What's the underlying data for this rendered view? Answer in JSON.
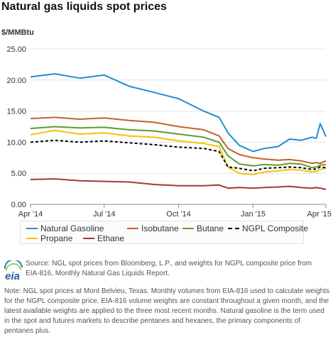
{
  "title": "Natural gas liquids spot prices",
  "unit_label": "$/MMBtu",
  "legend": [
    {
      "label": "Natural Gasoline",
      "color": "#1f8fd0",
      "style": "solid"
    },
    {
      "label": "Isobutane",
      "color": "#c3622b",
      "style": "solid"
    },
    {
      "label": "Butane",
      "color": "#5e9c2e",
      "style": "solid"
    },
    {
      "label": "NGPL Composite",
      "color": "#000000",
      "style": "dashed"
    },
    {
      "label": "Propane",
      "color": "#f2c500",
      "style": "solid"
    },
    {
      "label": "Ethane",
      "color": "#9e3a3a",
      "style": "solid"
    }
  ],
  "source": "Source: NGL spot prices from Bloomberg, L.P., and weights for NGPL composite price from EIA-816, Monthly Natural Gas Liquids Report.",
  "note": "Note: NGL spot prices at Mont Belvieu, Texas. Monthly volumes from EIA-816 used to calculate weights for the NGPL composite price. EIA-816 volume weights are constant throughout a given month, and the latest available weights are applied to the three most recent months. Natural gasoline is the term used in the spot and futures markets to describe pentanes and hexanes, the primary components of pentanes plus.",
  "logo_text": "eia",
  "chart_data": {
    "type": "line",
    "title": "Natural gas liquids spot prices",
    "ylabel": "$/MMBtu",
    "xlabel": "",
    "ylim": [
      0,
      25
    ],
    "yticks": [
      "0.00",
      "5.00",
      "10.00",
      "15.00",
      "20.00",
      "25.00"
    ],
    "xtick_labels": [
      "Apr '14",
      "Jul '14",
      "Oct '14",
      "Jan '15",
      "Apr '15"
    ],
    "xtick_dates": [
      "2014-04-01",
      "2014-07-01",
      "2014-10-01",
      "2015-01-01",
      "2015-04-01"
    ],
    "x_range": [
      "2014-04-01",
      "2015-04-01"
    ],
    "grid": true,
    "legend_position": "bottom",
    "x": [
      "2014-04-01",
      "2014-05-01",
      "2014-06-01",
      "2014-07-01",
      "2014-08-01",
      "2014-09-01",
      "2014-10-01",
      "2014-11-01",
      "2014-11-20",
      "2014-12-01",
      "2014-12-15",
      "2015-01-01",
      "2015-01-15",
      "2015-02-01",
      "2015-02-15",
      "2015-03-01",
      "2015-03-15",
      "2015-03-20",
      "2015-03-25",
      "2015-04-01"
    ],
    "series": [
      {
        "name": "Natural Gasoline",
        "color": "#1f8fd0",
        "values": [
          20.5,
          21.0,
          20.3,
          20.8,
          19.0,
          18.0,
          17.0,
          15.0,
          14.0,
          11.5,
          9.5,
          8.5,
          9.0,
          9.3,
          10.5,
          10.3,
          10.8,
          10.6,
          13.0,
          10.9
        ]
      },
      {
        "name": "Isobutane",
        "color": "#c3622b",
        "values": [
          13.8,
          14.0,
          13.7,
          13.9,
          13.5,
          13.2,
          12.5,
          12.0,
          11.0,
          9.0,
          8.0,
          7.5,
          7.3,
          7.1,
          7.2,
          7.0,
          6.6,
          6.7,
          6.6,
          7.0
        ]
      },
      {
        "name": "Butane",
        "color": "#5e9c2e",
        "values": [
          12.2,
          12.5,
          12.3,
          12.4,
          12.0,
          11.8,
          11.3,
          10.8,
          10.0,
          7.8,
          6.5,
          6.2,
          6.4,
          6.3,
          6.6,
          6.5,
          5.9,
          6.0,
          6.3,
          6.4
        ]
      },
      {
        "name": "NGPL Composite",
        "color": "#000000",
        "dashed": true,
        "values": [
          10.0,
          10.3,
          10.0,
          10.2,
          9.9,
          9.6,
          9.2,
          9.0,
          8.5,
          6.0,
          5.8,
          5.4,
          5.8,
          5.9,
          6.0,
          5.9,
          5.6,
          5.7,
          6.0,
          5.9
        ]
      },
      {
        "name": "Propane",
        "color": "#f2c500",
        "values": [
          11.2,
          11.9,
          11.3,
          11.5,
          11.0,
          10.8,
          10.2,
          9.8,
          9.3,
          6.0,
          5.0,
          4.8,
          5.2,
          5.4,
          5.6,
          5.5,
          5.2,
          5.3,
          5.6,
          5.8
        ]
      },
      {
        "name": "Ethane",
        "color": "#9e3a3a",
        "values": [
          4.0,
          4.1,
          3.8,
          3.7,
          3.6,
          3.2,
          3.0,
          3.0,
          3.1,
          2.6,
          2.7,
          2.6,
          2.7,
          2.8,
          2.9,
          2.7,
          2.6,
          2.7,
          2.6,
          2.4
        ]
      }
    ]
  }
}
